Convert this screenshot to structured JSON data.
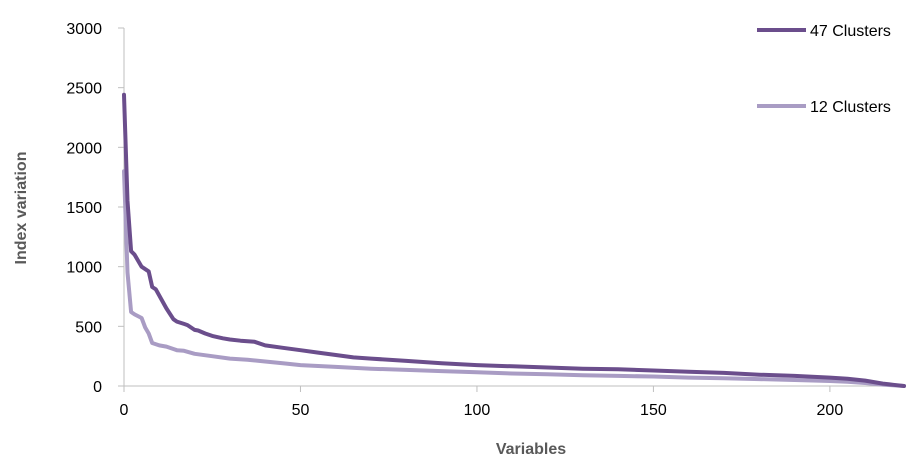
{
  "chart_data": {
    "type": "line",
    "title": "",
    "xlabel": "Variables",
    "ylabel": "Index variation",
    "xlim": [
      0,
      221
    ],
    "ylim": [
      0,
      3000
    ],
    "xticks": [
      0,
      50,
      100,
      150,
      200
    ],
    "yticks": [
      0,
      500,
      1000,
      1500,
      2000,
      2500,
      3000
    ],
    "grid": false,
    "legend_position": "right",
    "series": [
      {
        "name": "47 Clusters",
        "color": "#6b4e8c",
        "x": [
          0,
          1,
          2,
          3,
          5,
          7,
          8,
          9,
          12,
          14,
          15,
          17,
          18,
          20,
          21,
          23,
          25,
          28,
          30,
          33,
          37,
          40,
          45,
          50,
          55,
          60,
          65,
          70,
          80,
          90,
          100,
          110,
          120,
          130,
          140,
          150,
          160,
          170,
          180,
          190,
          200,
          205,
          210,
          215,
          218,
          221
        ],
        "values": [
          2440,
          1550,
          1130,
          1100,
          1000,
          960,
          830,
          810,
          650,
          560,
          540,
          520,
          510,
          470,
          465,
          440,
          420,
          400,
          390,
          380,
          370,
          340,
          320,
          300,
          280,
          260,
          240,
          230,
          210,
          190,
          175,
          165,
          155,
          145,
          140,
          130,
          120,
          110,
          95,
          85,
          70,
          60,
          45,
          20,
          10,
          0
        ]
      },
      {
        "name": "12 Clusters",
        "color": "#a99cc4",
        "x": [
          0,
          1,
          2,
          3,
          5,
          6,
          7,
          8,
          10,
          12,
          14,
          15,
          17,
          20,
          25,
          30,
          35,
          40,
          45,
          50,
          60,
          70,
          80,
          90,
          100,
          110,
          120,
          130,
          140,
          150,
          160,
          170,
          180,
          190,
          200,
          205,
          210,
          215,
          221
        ],
        "values": [
          1800,
          950,
          620,
          600,
          570,
          490,
          440,
          360,
          340,
          330,
          310,
          300,
          295,
          270,
          250,
          230,
          220,
          205,
          190,
          175,
          160,
          145,
          135,
          125,
          115,
          105,
          98,
          90,
          85,
          80,
          70,
          65,
          58,
          50,
          42,
          35,
          25,
          12,
          0
        ]
      }
    ]
  }
}
